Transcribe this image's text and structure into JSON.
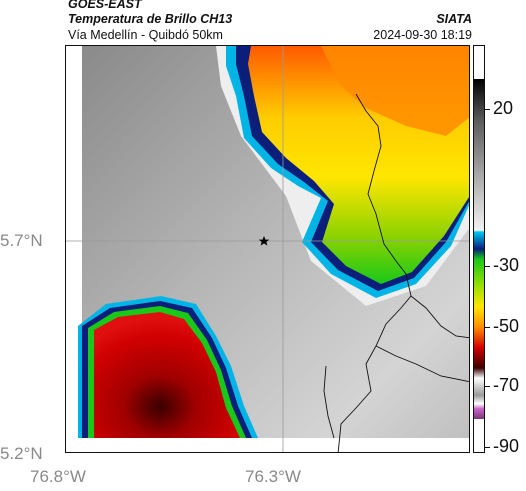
{
  "header": {
    "satellite": "GOES-EAST",
    "product": "Temperatura de Brillo CH13",
    "organization": "SIATA",
    "region": "Vía Medellín - Quibdó 50km",
    "timestamp": "2024-09-30 18:19"
  },
  "map": {
    "lat_labels": [
      "5.7°N",
      "5.2°N"
    ],
    "lon_labels": [
      "76.8°W",
      "76.3°W"
    ],
    "marker_icon": "star-icon"
  },
  "colorbar": {
    "labels": [
      "20",
      "-30",
      "-50",
      "-70",
      "-90"
    ],
    "colors": {
      "warm_gray": "#8c8c8c",
      "light_gray": "#e6e6e6",
      "cyan": "#00b4e6",
      "navy": "#0a1e7a",
      "green": "#19c819",
      "yellow": "#ffe600",
      "orange": "#ff8c00",
      "red": "#d20000",
      "dark_red": "#5a0000",
      "magenta": "#c864c8"
    }
  }
}
